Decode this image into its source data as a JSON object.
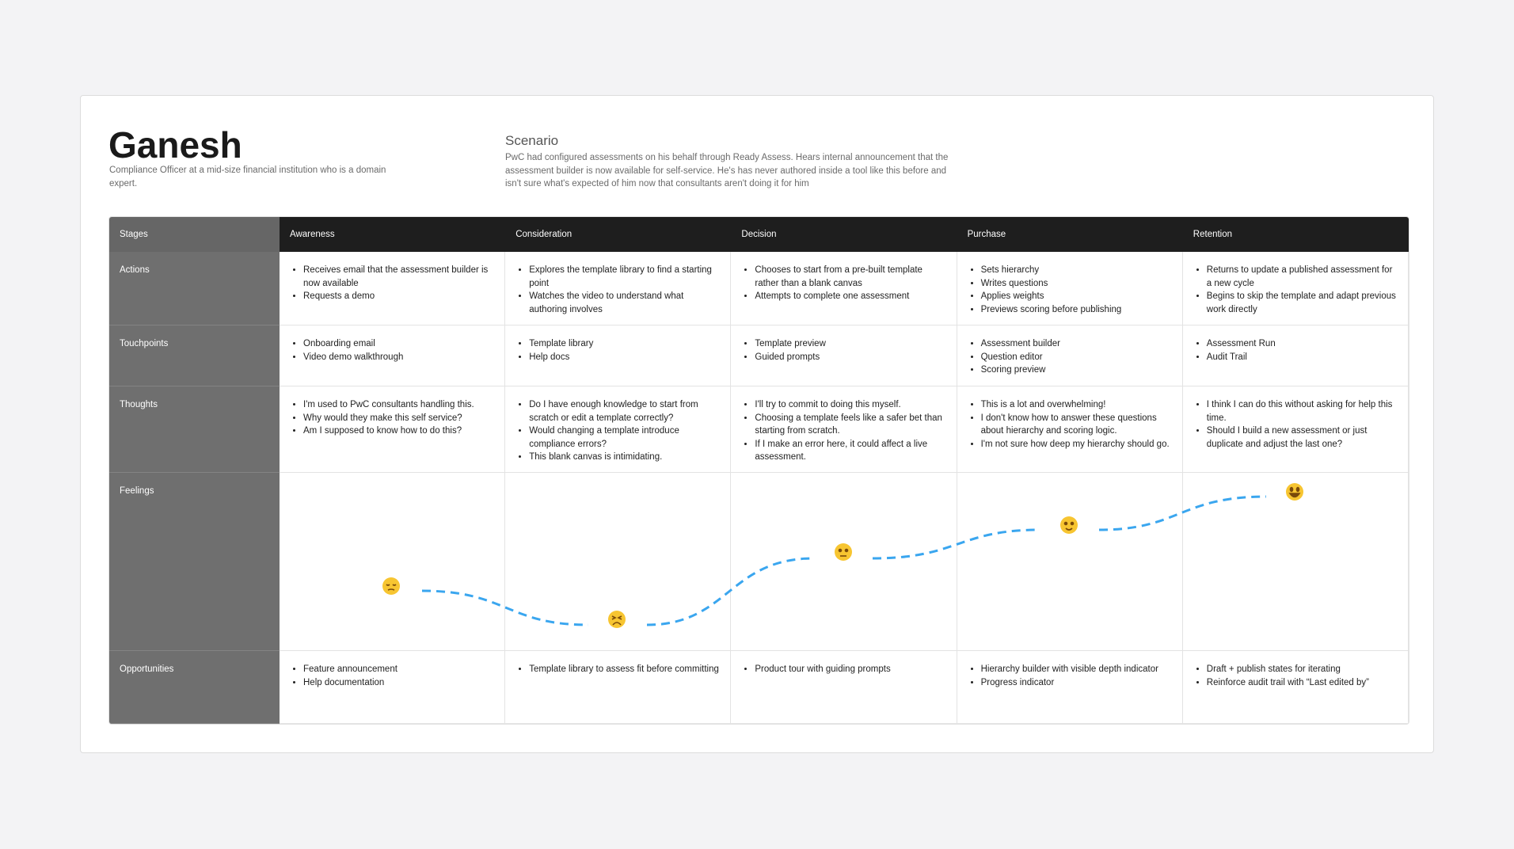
{
  "persona": {
    "name": "Ganesh",
    "description": "Compliance Officer at a mid-size financial institution who is a domain expert."
  },
  "scenario": {
    "title": "Scenario",
    "text": "PwC had configured assessments on his behalf through Ready Assess. Hears internal announcement that the assessment builder is now available for self-service. He's has never authored inside a tool like this before and isn't sure what's expected of him now that consultants aren't doing it for him"
  },
  "table": {
    "stages_label": "Stages",
    "stages": [
      "Awareness",
      "Consideration",
      "Decision",
      "Purchase",
      "Retention"
    ],
    "rows": [
      {
        "label": "Actions",
        "cells": [
          [
            "Receives email that the assessment builder is now available",
            "Requests a demo"
          ],
          [
            "Explores the template library to find a starting point",
            "Watches the video to understand what authoring involves"
          ],
          [
            "Chooses to start from a pre-built template rather than a blank canvas",
            "Attempts to complete one assessment"
          ],
          [
            "Sets hierarchy",
            "Writes questions",
            "Applies weights",
            "Previews scoring before publishing"
          ],
          [
            "Returns to update a published assessment for a new cycle",
            "Begins to skip the template and adapt previous work directly"
          ]
        ]
      },
      {
        "label": "Touchpoints",
        "cells": [
          [
            "Onboarding email",
            "Video demo walkthrough"
          ],
          [
            "Template library",
            "Help docs"
          ],
          [
            "Template preview",
            "Guided prompts"
          ],
          [
            "Assessment builder",
            "Question editor",
            "Scoring preview"
          ],
          [
            "Assessment Run",
            "Audit Trail"
          ]
        ]
      },
      {
        "label": "Thoughts",
        "cells": [
          [
            "I'm used to PwC consultants handling this.",
            "Why would they make this self service?",
            "Am I supposed to know how to do this?"
          ],
          [
            "Do I have enough knowledge to start from scratch or edit a template correctly?",
            "Would changing a template introduce compliance errors?",
            "This blank canvas is intimidating."
          ],
          [
            "I'll try to commit to doing this myself.",
            "Choosing a template feels like a safer bet than starting from scratch.",
            "If I make an error here, it could affect a live assessment."
          ],
          [
            "This is a lot and overwhelming!",
            "I don't know how to answer these questions about hierarchy and scoring logic.",
            "I'm not sure how deep my hierarchy should go."
          ],
          [
            "I think I can do this without asking for help this time.",
            "Should I build a new assessment or just duplicate and adjust the last one?"
          ]
        ]
      },
      {
        "label": "Feelings"
      },
      {
        "label": "Opportunities",
        "cells": [
          [
            "Feature announcement",
            "Help documentation"
          ],
          [
            "Template library to assess fit before committing"
          ],
          [
            "Product tour with guiding prompts"
          ],
          [
            "Hierarchy builder with visible depth indicator",
            "Progress indicator"
          ],
          [
            "Draft + publish states for iterating",
            "Reinforce audit trail with “Last edited by”"
          ]
        ]
      }
    ]
  }
}
